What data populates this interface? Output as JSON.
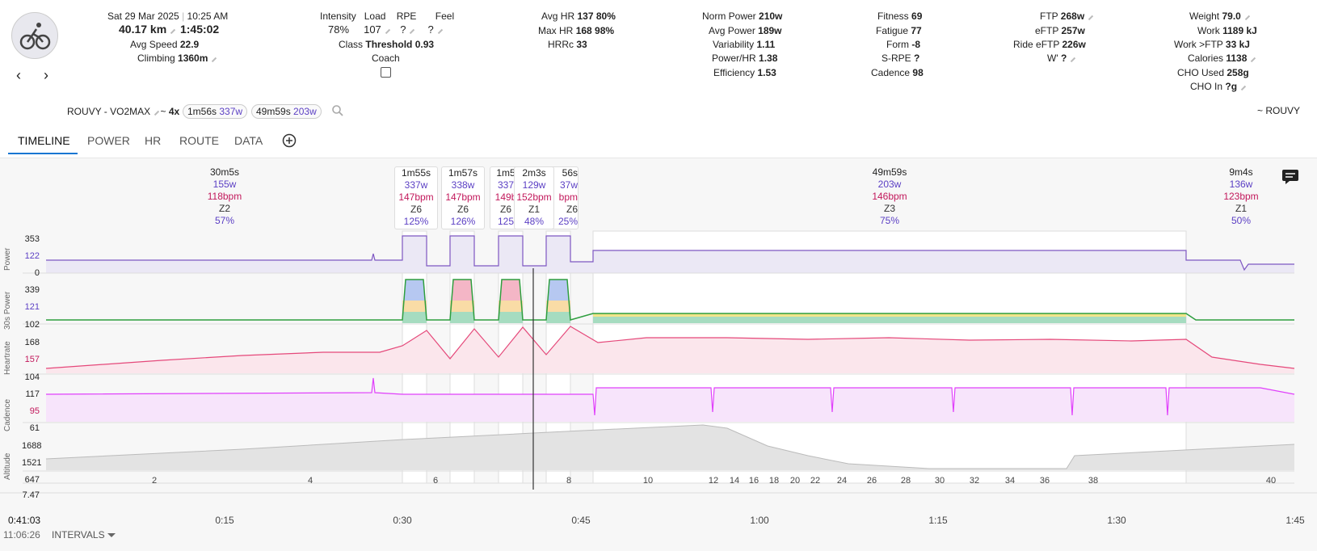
{
  "activity": {
    "date": "Sat 29 Mar 2025",
    "time": "10:25 AM",
    "distance": "40.17 km",
    "duration": "1:45:02",
    "avg_speed_label": "Avg Speed",
    "avg_speed": "22.9",
    "climbing_label": "Climbing",
    "climbing": "1360m"
  },
  "load": {
    "intensity_label": "Intensity",
    "intensity": "78%",
    "load_label": "Load",
    "load": "107",
    "rpe_label": "RPE",
    "rpe": "?",
    "feel_label": "Feel",
    "feel": "?",
    "class_label": "Class",
    "class": "Threshold 0.93",
    "coach_label": "Coach"
  },
  "hr": {
    "avg_label": "Avg HR",
    "avg": "137 80%",
    "max_label": "Max HR",
    "max": "168 98%",
    "hrrc_label": "HRRc",
    "hrrc": "33"
  },
  "power": {
    "norm_label": "Norm Power",
    "norm": "210w",
    "avg_label": "Avg Power",
    "avg": "189w",
    "var_label": "Variability",
    "var": "1.11",
    "phr_label": "Power/HR",
    "phr": "1.38",
    "eff_label": "Efficiency",
    "eff": "1.53"
  },
  "fitness": {
    "fitness_label": "Fitness",
    "fitness": "69",
    "fatigue_label": "Fatigue",
    "fatigue": "77",
    "form_label": "Form",
    "form": "-8",
    "srpe_label": "S-RPE",
    "srpe": "?",
    "cad_label": "Cadence",
    "cad": "98"
  },
  "ftp": {
    "ftp_label": "FTP",
    "ftp": "268w",
    "eftp_label": "eFTP",
    "eftp": "257w",
    "ride_label": "Ride eFTP",
    "ride": "226w",
    "wp_label": "W'",
    "wp": "?"
  },
  "body": {
    "weight_label": "Weight",
    "weight": "79.0",
    "work_label": "Work",
    "work": "1189 kJ",
    "workftp_label": "Work >FTP",
    "workftp": "33 kJ",
    "cal_label": "Calories",
    "cal": "1138",
    "cho_label": "CHO Used",
    "cho": "258g",
    "choin_label": "CHO In",
    "choin": "?g"
  },
  "workout": {
    "name": "ROUVY - VO2MAX",
    "tilde": "~",
    "reps": "4x",
    "chip1_time": "1m56s",
    "chip1_watts": "337w",
    "chip2_time": "49m59s",
    "chip2_watts": "203w",
    "source": "~ ROUVY"
  },
  "tabs": [
    "TIMELINE",
    "POWER",
    "HR",
    "ROUTE",
    "DATA"
  ],
  "intervals": [
    {
      "t": "30m5s",
      "w": "155w",
      "b": "118bpm",
      "z": "Z2",
      "p": "57%"
    },
    {
      "t": "1m55s",
      "w": "337w",
      "b": "147bpm",
      "z": "Z6",
      "p": "125%"
    },
    {
      "t": "1m57s",
      "w": "338w",
      "b": "147bpm",
      "z": "Z6",
      "p": "126%"
    },
    {
      "t": "1m5",
      "w": "337",
      "b": "149b",
      "z": "Z6",
      "p": "125"
    },
    {
      "t": "2m3s",
      "w": "129w",
      "b": "152bpm",
      "z": "Z1",
      "p": "48%"
    },
    {
      "t": "56s",
      "w": "37w",
      "b": "bpm",
      "z": "Z6",
      "p": "25%"
    },
    {
      "t": "49m59s",
      "w": "203w",
      "b": "146bpm",
      "z": "Z3",
      "p": "75%"
    },
    {
      "t": "9m4s",
      "w": "136w",
      "b": "123bpm",
      "z": "Z1",
      "p": "50%"
    }
  ],
  "charts": {
    "power": {
      "label": "Power",
      "ticks": [
        "353",
        "122",
        "0"
      ]
    },
    "p30": {
      "label": "30s Power",
      "ticks": [
        "339",
        "121",
        "102"
      ]
    },
    "hr": {
      "label": "Heartrate",
      "ticks": [
        "168",
        "157",
        "104"
      ]
    },
    "cad": {
      "label": "Cadence",
      "ticks": [
        "117",
        "95",
        "61"
      ]
    },
    "alt": {
      "label": "Altitude",
      "ticks": [
        "1688",
        "1521",
        "647",
        "7.47"
      ]
    }
  },
  "laps": [
    "2",
    "4",
    "6",
    "8",
    "10",
    "12",
    "14",
    "16",
    "18",
    "20",
    "22",
    "24",
    "26",
    "28",
    "30",
    "32",
    "34",
    "36",
    "38",
    "40"
  ],
  "xaxis": [
    "0:15",
    "0:30",
    "0:45",
    "1:00",
    "1:15",
    "1:30",
    "1:45"
  ],
  "cursor_time": "0:41:03",
  "clock": "11:06:26",
  "intervals_menu": "INTERVALS",
  "colors": {
    "power": "#7e57c2",
    "hr": "#e5487a",
    "cad": "#e040fb",
    "accent": "#1976d2"
  }
}
